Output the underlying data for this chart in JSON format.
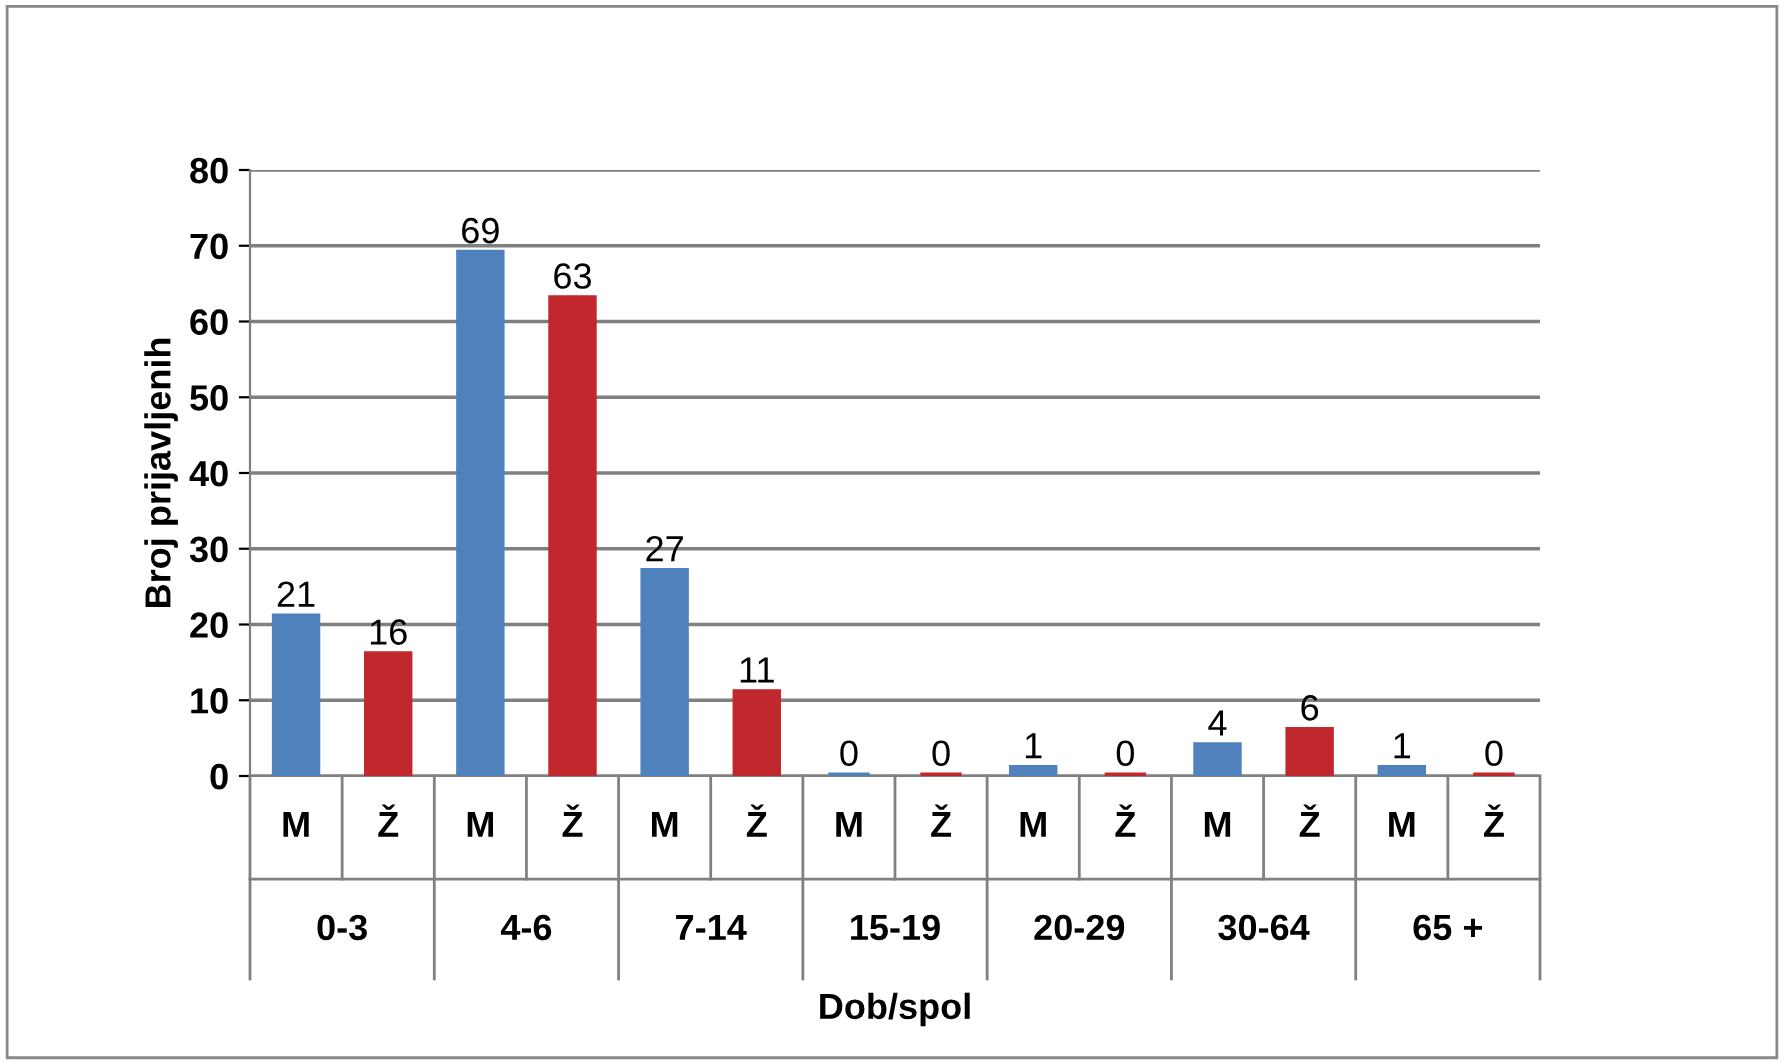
{
  "chart_data": {
    "type": "bar",
    "xlabel": "Dob/spol",
    "ylabel": "Broj prijavljenih",
    "categories": [
      "0-3",
      "4-6",
      "7-14",
      "15-19",
      "20-29",
      "30-64",
      "65 +"
    ],
    "series": [
      {
        "name": "M",
        "color": "#4f81bd",
        "values": [
          21,
          69,
          27,
          0,
          1,
          4,
          1
        ]
      },
      {
        "name": "Ž",
        "color": "#c0282d",
        "values": [
          16,
          63,
          11,
          0,
          0,
          6,
          0
        ]
      }
    ],
    "ylim": [
      0,
      80
    ],
    "yticks": [
      0,
      10,
      20,
      30,
      40,
      50,
      60,
      70,
      80
    ],
    "grid": "y",
    "data_labels": true,
    "legend": false
  }
}
